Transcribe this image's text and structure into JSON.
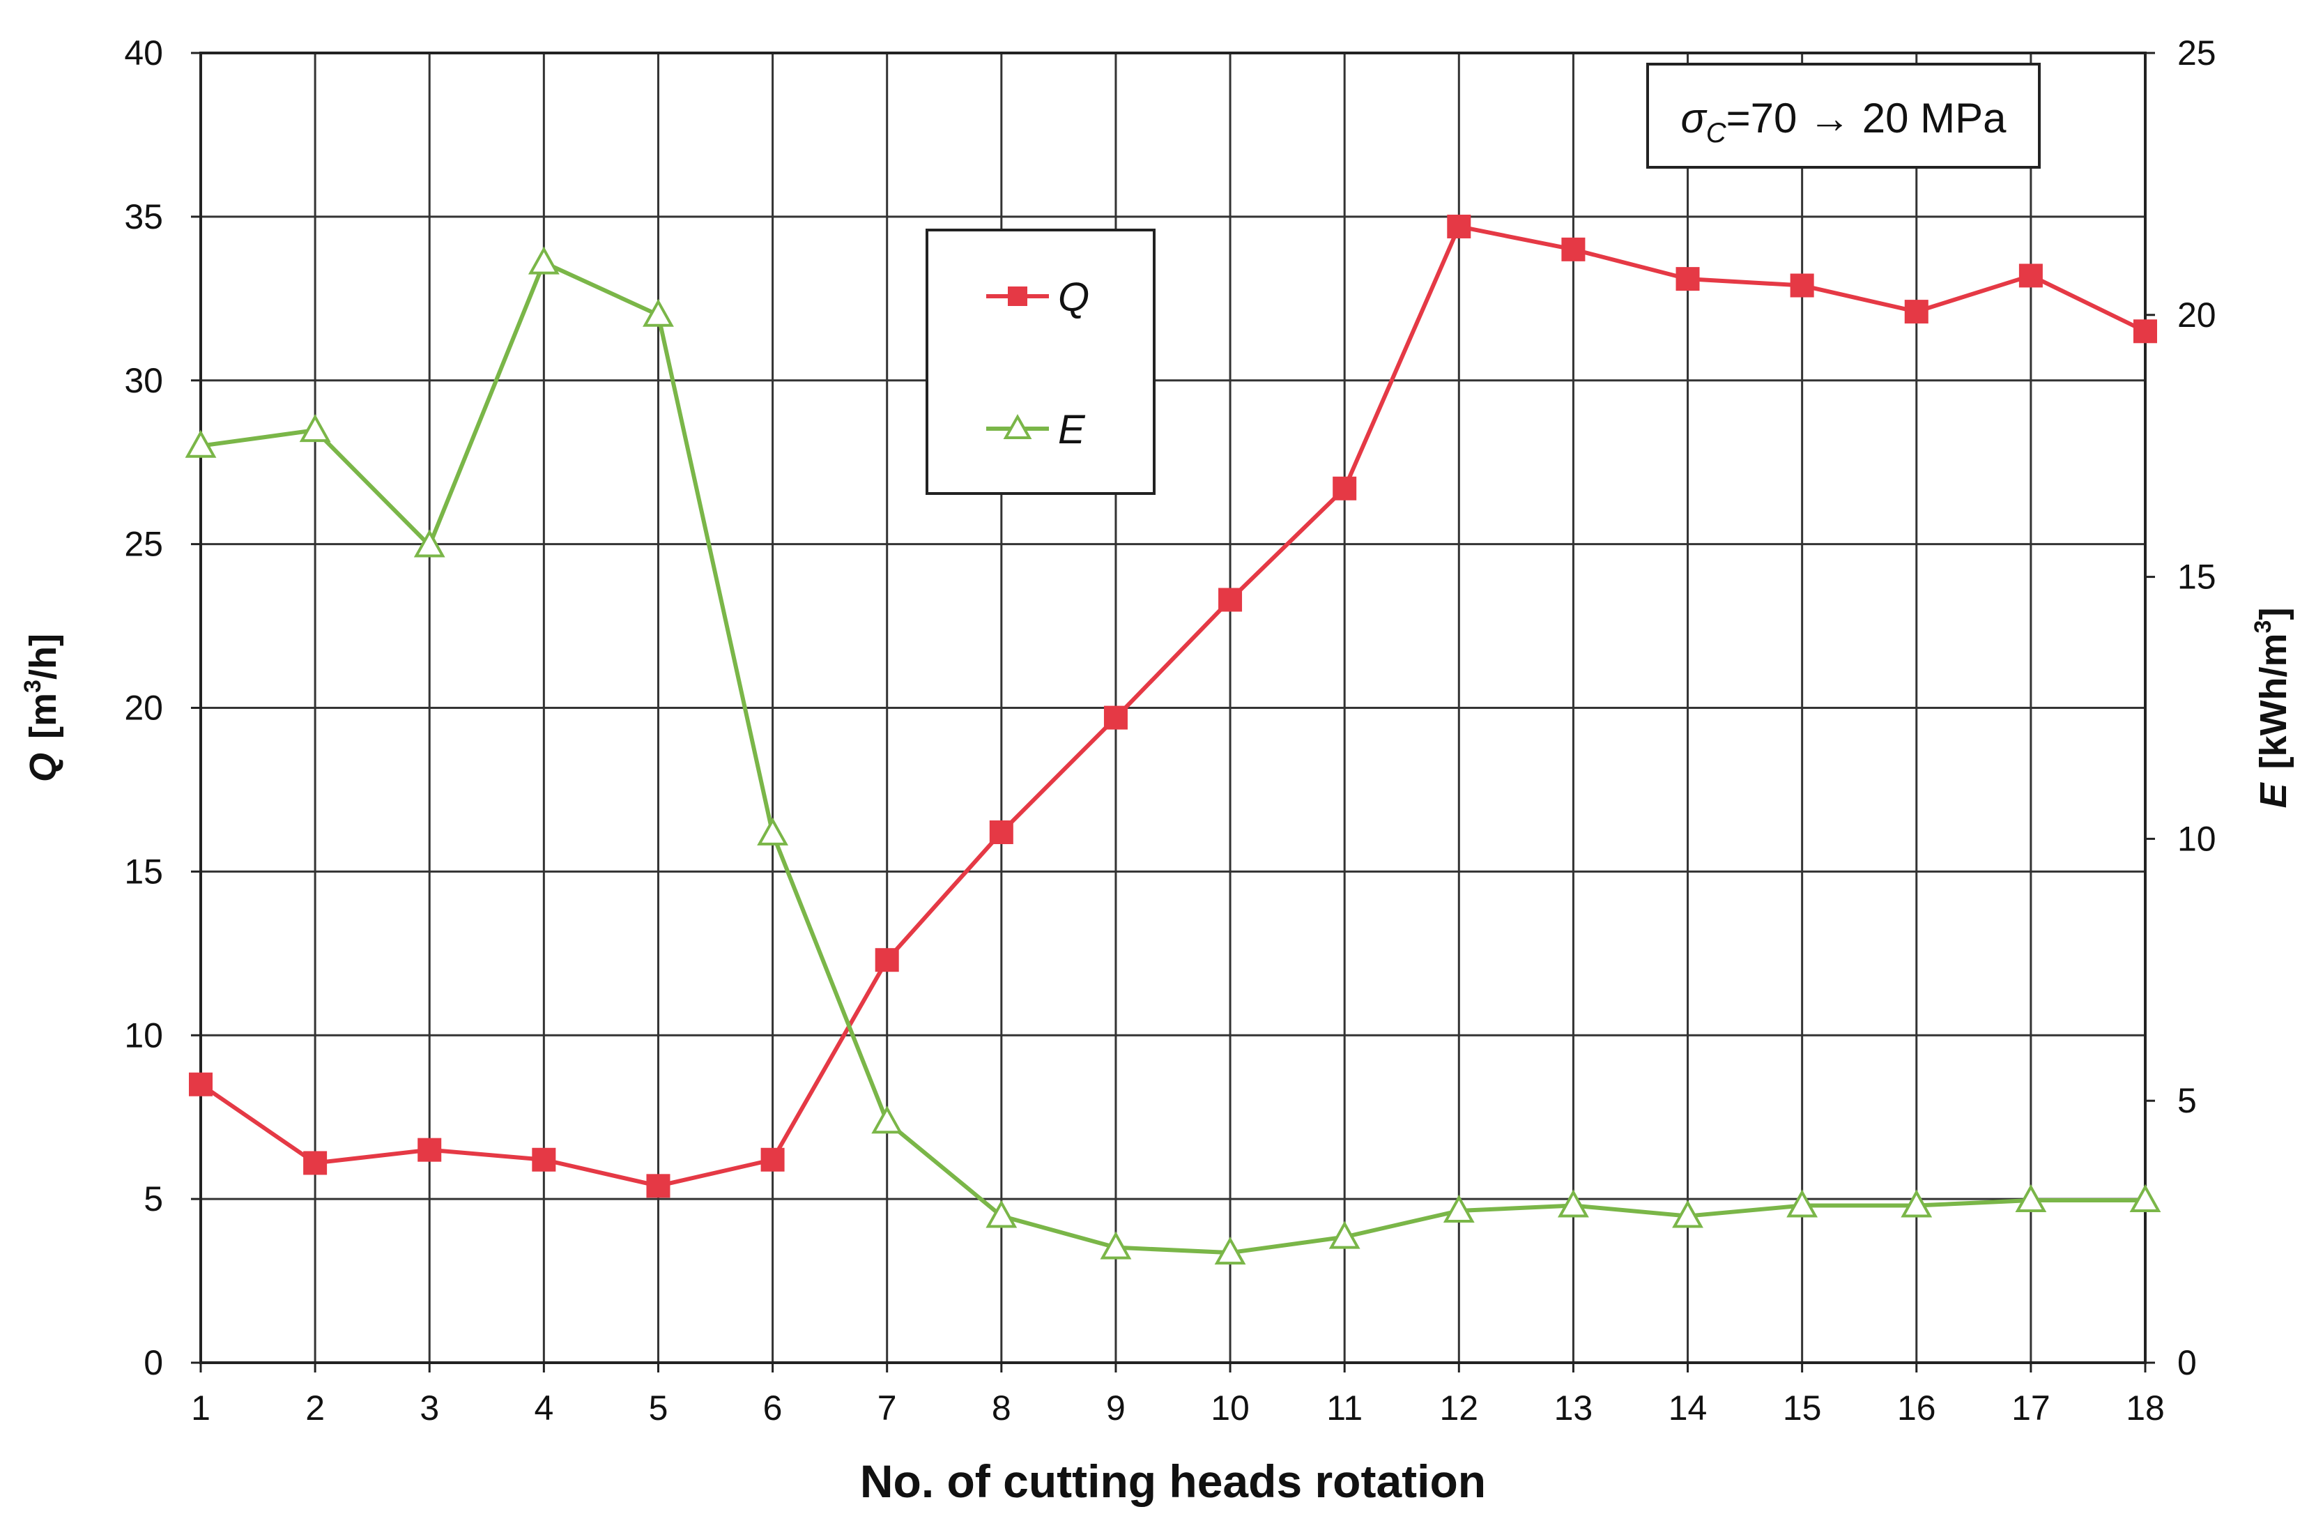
{
  "chart_data": {
    "type": "line",
    "x": [
      1,
      2,
      3,
      4,
      5,
      6,
      7,
      8,
      9,
      10,
      11,
      12,
      13,
      14,
      15,
      16,
      17,
      18
    ],
    "xlabel": "No. of cutting heads rotation",
    "xlim": [
      1,
      18
    ],
    "y_left": {
      "label_symbol": "Q",
      "label_unit_pre": "[m",
      "label_unit_sup": "3",
      "label_unit_post": "/h]",
      "lim": [
        0,
        40
      ],
      "ticks": [
        0,
        5,
        10,
        15,
        20,
        25,
        30,
        35,
        40
      ]
    },
    "y_right": {
      "label_symbol": "E",
      "label_unit_pre": "[kWh/m",
      "label_unit_sup": "3",
      "label_unit_post": "]",
      "lim": [
        0,
        25
      ],
      "ticks": [
        0,
        5,
        10,
        15,
        20,
        25
      ]
    },
    "series": [
      {
        "name": "Q",
        "axis": "left",
        "color": "#e53945",
        "marker": "square",
        "values": [
          8.5,
          6.1,
          6.5,
          6.2,
          5.4,
          6.2,
          12.3,
          16.2,
          19.7,
          23.3,
          26.7,
          34.7,
          34.0,
          33.1,
          32.9,
          32.1,
          33.2,
          31.5
        ]
      },
      {
        "name": "E",
        "axis": "right",
        "color": "#7ab648",
        "marker": "triangle-open",
        "values": [
          17.5,
          17.8,
          15.6,
          21.0,
          20.0,
          10.1,
          4.6,
          2.8,
          2.2,
          2.1,
          2.4,
          2.9,
          3.0,
          2.8,
          3.0,
          3.0,
          3.1,
          3.1
        ]
      }
    ],
    "grid": true,
    "legend": {
      "placement": "upper-center"
    },
    "annotation": {
      "symbol": "σ",
      "subscript": "C",
      "text": "=70 → 20 MPa"
    }
  }
}
